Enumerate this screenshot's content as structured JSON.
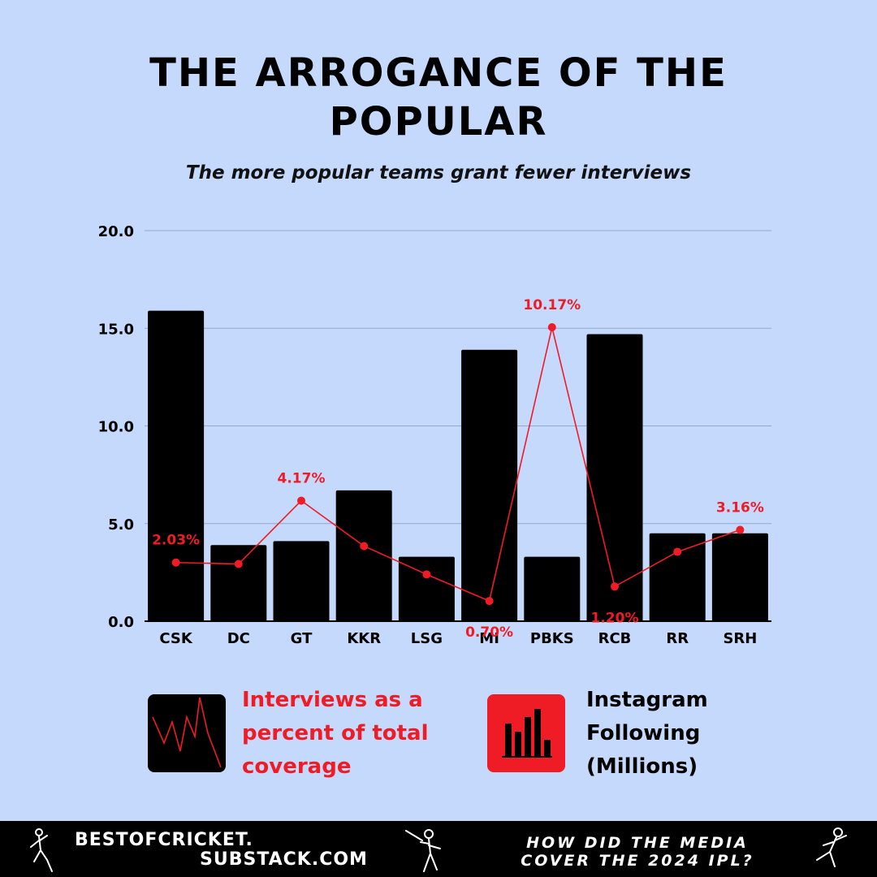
{
  "header": {
    "title": "THE ARROGANCE OF THE POPULAR",
    "subtitle": "The more popular teams grant fewer interviews"
  },
  "chart_data": {
    "type": "bar",
    "categories": [
      "CSK",
      "DC",
      "GT",
      "KKR",
      "LSG",
      "MI",
      "PBKS",
      "RCB",
      "RR",
      "SRH"
    ],
    "ylim": [
      0,
      20
    ],
    "yticks": [
      "0.0",
      "5.0",
      "10.0",
      "15.0",
      "20.0"
    ],
    "grid": true,
    "series": [
      {
        "name": "Instagram Following (Millions)",
        "type": "bar",
        "color": "#000000",
        "values": [
          15.9,
          3.9,
          4.1,
          6.7,
          3.3,
          13.9,
          3.3,
          14.7,
          4.5,
          4.5
        ]
      },
      {
        "name": "Interviews as a percent of total coverage",
        "type": "line",
        "color": "#ef1c25",
        "values": [
          2.03,
          1.98,
          4.17,
          2.6,
          1.62,
          0.7,
          10.17,
          1.2,
          2.4,
          3.16
        ],
        "labels": [
          "2.03%",
          "",
          "4.17%",
          "",
          "",
          "0.70%",
          "10.17%",
          "1.20%",
          "",
          "3.16%"
        ]
      }
    ]
  },
  "legend": {
    "interviews_label": "Interviews as a percent of total coverage",
    "instagram_label": "Instagram Following (Millions)",
    "interviews_icon": "line-chart-icon",
    "instagram_icon": "bar-chart-icon"
  },
  "footer": {
    "brand_line1": "BESTOFCRICKET.",
    "brand_line2": "SUBSTACK.COM",
    "tagline": "HOW DID THE MEDIA COVER THE 2024 IPL?",
    "icons": [
      "cricket-bowler-icon",
      "cricket-batsman-icon",
      "cricket-fielder-icon"
    ]
  }
}
